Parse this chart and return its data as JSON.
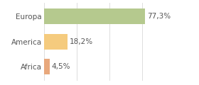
{
  "categories": [
    "Africa",
    "America",
    "Europa"
  ],
  "values": [
    4.5,
    18.2,
    77.3
  ],
  "bar_colors": [
    "#e8a87c",
    "#f5cb7e",
    "#b5c98e"
  ],
  "labels": [
    "4,5%",
    "18,2%",
    "77,3%"
  ],
  "xlim": [
    0,
    100
  ],
  "background_color": "#ffffff",
  "text_color": "#555555",
  "label_fontsize": 7.5,
  "tick_fontsize": 7.5,
  "bar_height": 0.62,
  "grid_color": "#d8d8d8",
  "grid_ticks": [
    0,
    25,
    50,
    75,
    100
  ]
}
